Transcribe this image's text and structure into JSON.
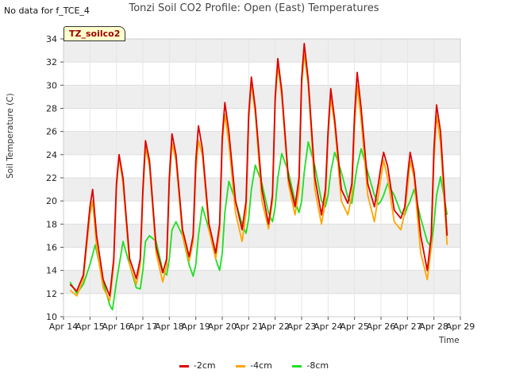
{
  "header": {
    "no_data_text": "No data for f_TCE_4",
    "title": "Tonzi Soil CO2 Profile: Open (East) Temperatures"
  },
  "badge": {
    "label": "TZ_soilco2"
  },
  "colors": {
    "s2": "#dd0000",
    "s4": "#ffa500",
    "s8": "#22dd22",
    "band": "#eeeeee"
  },
  "chart_data": {
    "type": "line",
    "title": "Tonzi Soil CO2 Profile: Open (East) Temperatures",
    "xlabel": "Time",
    "ylabel": "Soil Temperature (C)",
    "xlim": [
      14,
      29
    ],
    "ylim": [
      10,
      34
    ],
    "x_tick_labels": [
      "Apr 14",
      "Apr 15",
      "Apr 16",
      "Apr 17",
      "Apr 18",
      "Apr 19",
      "Apr 20",
      "Apr 21",
      "Apr 22",
      "Apr 23",
      "Apr 24",
      "Apr 25",
      "Apr 26",
      "Apr 27",
      "Apr 28",
      "Apr 29"
    ],
    "y_ticks": [
      10,
      12,
      14,
      16,
      18,
      20,
      22,
      24,
      26,
      28,
      30,
      32,
      34
    ],
    "legend_position": "bottom",
    "series": [
      {
        "name": "-2cm",
        "color": "#dd0000",
        "points": [
          [
            14.25,
            12.8
          ],
          [
            14.5,
            12.2
          ],
          [
            14.75,
            13.6
          ],
          [
            15.0,
            19.5
          ],
          [
            15.1,
            21.0
          ],
          [
            15.25,
            17.0
          ],
          [
            15.5,
            13.2
          ],
          [
            15.75,
            11.8
          ],
          [
            15.9,
            15.0
          ],
          [
            16.0,
            21.5
          ],
          [
            16.1,
            24.0
          ],
          [
            16.25,
            22.0
          ],
          [
            16.5,
            15.0
          ],
          [
            16.75,
            13.3
          ],
          [
            16.9,
            15.0
          ],
          [
            17.0,
            21.0
          ],
          [
            17.1,
            25.2
          ],
          [
            17.25,
            23.5
          ],
          [
            17.5,
            16.0
          ],
          [
            17.75,
            13.8
          ],
          [
            17.9,
            15.0
          ],
          [
            18.0,
            22.0
          ],
          [
            18.1,
            25.8
          ],
          [
            18.25,
            24.0
          ],
          [
            18.5,
            17.5
          ],
          [
            18.75,
            15.2
          ],
          [
            18.9,
            17.0
          ],
          [
            19.0,
            23.5
          ],
          [
            19.1,
            26.5
          ],
          [
            19.25,
            24.5
          ],
          [
            19.5,
            18.0
          ],
          [
            19.75,
            15.5
          ],
          [
            19.9,
            18.0
          ],
          [
            20.0,
            25.5
          ],
          [
            20.1,
            28.5
          ],
          [
            20.25,
            26.0
          ],
          [
            20.5,
            20.0
          ],
          [
            20.75,
            17.5
          ],
          [
            20.9,
            20.0
          ],
          [
            21.0,
            27.5
          ],
          [
            21.1,
            30.7
          ],
          [
            21.25,
            28.0
          ],
          [
            21.5,
            21.0
          ],
          [
            21.75,
            18.0
          ],
          [
            21.9,
            20.5
          ],
          [
            22.0,
            29.0
          ],
          [
            22.1,
            32.3
          ],
          [
            22.25,
            29.5
          ],
          [
            22.5,
            22.0
          ],
          [
            22.75,
            19.5
          ],
          [
            22.9,
            22.0
          ],
          [
            23.0,
            30.5
          ],
          [
            23.1,
            33.6
          ],
          [
            23.25,
            30.5
          ],
          [
            23.5,
            22.0
          ],
          [
            23.75,
            18.8
          ],
          [
            23.9,
            21.0
          ],
          [
            24.0,
            26.0
          ],
          [
            24.1,
            29.7
          ],
          [
            24.25,
            27.0
          ],
          [
            24.5,
            21.0
          ],
          [
            24.75,
            19.8
          ],
          [
            24.9,
            21.5
          ],
          [
            25.0,
            27.5
          ],
          [
            25.1,
            31.1
          ],
          [
            25.25,
            28.0
          ],
          [
            25.5,
            21.5
          ],
          [
            25.75,
            19.5
          ],
          [
            25.9,
            21.5
          ],
          [
            26.0,
            23.0
          ],
          [
            26.1,
            24.2
          ],
          [
            26.25,
            23.0
          ],
          [
            26.5,
            19.2
          ],
          [
            26.75,
            18.5
          ],
          [
            26.9,
            19.5
          ],
          [
            27.0,
            22.0
          ],
          [
            27.1,
            24.2
          ],
          [
            27.25,
            22.5
          ],
          [
            27.5,
            17.0
          ],
          [
            27.75,
            14.0
          ],
          [
            27.9,
            17.0
          ],
          [
            28.0,
            24.5
          ],
          [
            28.1,
            28.3
          ],
          [
            28.25,
            26.0
          ],
          [
            28.5,
            17.0
          ]
        ]
      },
      {
        "name": "-4cm",
        "color": "#ffa500",
        "points": [
          [
            14.25,
            12.3
          ],
          [
            14.5,
            11.8
          ],
          [
            14.75,
            13.2
          ],
          [
            15.0,
            18.8
          ],
          [
            15.1,
            20.0
          ],
          [
            15.25,
            16.0
          ],
          [
            15.5,
            12.5
          ],
          [
            15.75,
            11.4
          ],
          [
            15.9,
            14.5
          ],
          [
            16.0,
            21.0
          ],
          [
            16.1,
            23.8
          ],
          [
            16.25,
            21.5
          ],
          [
            16.5,
            14.5
          ],
          [
            16.75,
            12.8
          ],
          [
            16.9,
            14.5
          ],
          [
            17.0,
            20.5
          ],
          [
            17.1,
            24.6
          ],
          [
            17.25,
            23.0
          ],
          [
            17.5,
            15.5
          ],
          [
            17.75,
            13.0
          ],
          [
            17.9,
            14.5
          ],
          [
            18.0,
            21.5
          ],
          [
            18.1,
            25.0
          ],
          [
            18.25,
            23.5
          ],
          [
            18.5,
            17.0
          ],
          [
            18.75,
            14.8
          ],
          [
            18.9,
            16.5
          ],
          [
            19.0,
            22.5
          ],
          [
            19.1,
            25.2
          ],
          [
            19.25,
            24.0
          ],
          [
            19.5,
            17.5
          ],
          [
            19.75,
            15.0
          ],
          [
            19.9,
            17.5
          ],
          [
            20.0,
            25.0
          ],
          [
            20.1,
            27.5
          ],
          [
            20.25,
            25.0
          ],
          [
            20.5,
            19.0
          ],
          [
            20.75,
            16.5
          ],
          [
            20.9,
            19.0
          ],
          [
            21.0,
            27.0
          ],
          [
            21.1,
            30.2
          ],
          [
            21.25,
            27.5
          ],
          [
            21.5,
            20.0
          ],
          [
            21.75,
            17.6
          ],
          [
            21.9,
            20.0
          ],
          [
            22.0,
            28.5
          ],
          [
            22.1,
            31.7
          ],
          [
            22.25,
            29.0
          ],
          [
            22.5,
            21.5
          ],
          [
            22.75,
            18.8
          ],
          [
            22.9,
            21.0
          ],
          [
            23.0,
            30.0
          ],
          [
            23.1,
            32.7
          ],
          [
            23.25,
            30.0
          ],
          [
            23.5,
            21.0
          ],
          [
            23.75,
            18.0
          ],
          [
            23.9,
            20.0
          ],
          [
            24.0,
            25.5
          ],
          [
            24.1,
            29.0
          ],
          [
            24.25,
            26.5
          ],
          [
            24.5,
            20.0
          ],
          [
            24.75,
            18.8
          ],
          [
            24.9,
            20.5
          ],
          [
            25.0,
            26.5
          ],
          [
            25.1,
            30.0
          ],
          [
            25.25,
            27.0
          ],
          [
            25.5,
            20.5
          ],
          [
            25.75,
            18.2
          ],
          [
            25.9,
            20.5
          ],
          [
            26.0,
            22.0
          ],
          [
            26.1,
            23.5
          ],
          [
            26.25,
            22.0
          ],
          [
            26.5,
            18.2
          ],
          [
            26.75,
            17.5
          ],
          [
            26.9,
            19.0
          ],
          [
            27.0,
            21.0
          ],
          [
            27.1,
            23.5
          ],
          [
            27.25,
            22.0
          ],
          [
            27.5,
            15.5
          ],
          [
            27.75,
            13.2
          ],
          [
            27.9,
            16.0
          ],
          [
            28.0,
            23.5
          ],
          [
            28.1,
            27.4
          ],
          [
            28.25,
            25.0
          ],
          [
            28.5,
            16.2
          ]
        ]
      },
      {
        "name": "-8cm",
        "color": "#22dd22",
        "points": [
          [
            14.25,
            13.0
          ],
          [
            14.5,
            12.0
          ],
          [
            14.75,
            12.8
          ],
          [
            15.0,
            14.5
          ],
          [
            15.2,
            16.2
          ],
          [
            15.5,
            13.0
          ],
          [
            15.75,
            11.0
          ],
          [
            15.85,
            10.6
          ],
          [
            16.0,
            13.0
          ],
          [
            16.25,
            16.5
          ],
          [
            16.5,
            14.5
          ],
          [
            16.75,
            12.5
          ],
          [
            16.9,
            12.4
          ],
          [
            17.0,
            14.0
          ],
          [
            17.1,
            16.5
          ],
          [
            17.25,
            17.0
          ],
          [
            17.5,
            16.5
          ],
          [
            17.75,
            14.0
          ],
          [
            17.9,
            13.6
          ],
          [
            18.0,
            15.0
          ],
          [
            18.1,
            17.5
          ],
          [
            18.25,
            18.2
          ],
          [
            18.5,
            17.0
          ],
          [
            18.75,
            14.5
          ],
          [
            18.9,
            13.5
          ],
          [
            19.0,
            14.5
          ],
          [
            19.1,
            17.0
          ],
          [
            19.25,
            19.5
          ],
          [
            19.5,
            17.5
          ],
          [
            19.75,
            15.0
          ],
          [
            19.9,
            14.0
          ],
          [
            20.0,
            15.5
          ],
          [
            20.1,
            19.0
          ],
          [
            20.25,
            21.7
          ],
          [
            20.5,
            20.0
          ],
          [
            20.75,
            18.0
          ],
          [
            20.9,
            17.2
          ],
          [
            21.0,
            18.5
          ],
          [
            21.1,
            21.0
          ],
          [
            21.25,
            23.1
          ],
          [
            21.5,
            21.5
          ],
          [
            21.75,
            19.0
          ],
          [
            21.9,
            18.2
          ],
          [
            22.0,
            19.5
          ],
          [
            22.1,
            22.0
          ],
          [
            22.25,
            24.1
          ],
          [
            22.5,
            22.5
          ],
          [
            22.75,
            20.0
          ],
          [
            22.9,
            19.0
          ],
          [
            23.0,
            20.0
          ],
          [
            23.1,
            22.5
          ],
          [
            23.25,
            25.1
          ],
          [
            23.5,
            23.0
          ],
          [
            23.75,
            20.0
          ],
          [
            23.9,
            19.5
          ],
          [
            24.0,
            20.5
          ],
          [
            24.1,
            22.5
          ],
          [
            24.25,
            24.2
          ],
          [
            24.5,
            22.5
          ],
          [
            24.75,
            20.3
          ],
          [
            24.9,
            19.8
          ],
          [
            25.0,
            21.5
          ],
          [
            25.1,
            23.0
          ],
          [
            25.25,
            24.5
          ],
          [
            25.5,
            22.5
          ],
          [
            25.75,
            20.5
          ],
          [
            25.9,
            19.7
          ],
          [
            26.0,
            20.0
          ],
          [
            26.1,
            20.5
          ],
          [
            26.25,
            21.5
          ],
          [
            26.5,
            20.5
          ],
          [
            26.75,
            19.0
          ],
          [
            26.9,
            18.8
          ],
          [
            27.0,
            19.5
          ],
          [
            27.1,
            20.0
          ],
          [
            27.25,
            21.0
          ],
          [
            27.5,
            18.5
          ],
          [
            27.75,
            16.5
          ],
          [
            27.9,
            16.0
          ],
          [
            28.0,
            18.0
          ],
          [
            28.1,
            20.5
          ],
          [
            28.25,
            22.1
          ],
          [
            28.5,
            18.8
          ]
        ]
      }
    ]
  }
}
